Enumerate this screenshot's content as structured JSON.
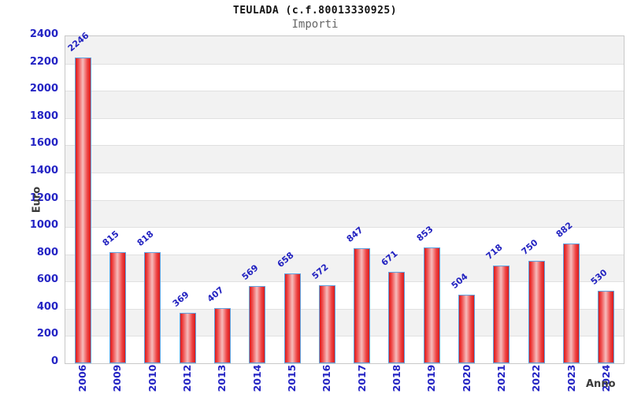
{
  "header": {
    "title": "TEULADA (c.f.80013330925)",
    "subtitle": "Importi"
  },
  "chart_data": {
    "type": "bar",
    "title": "TEULADA (c.f.80013330925)",
    "subtitle": "Importi",
    "xlabel": "Anno",
    "ylabel": "Euro",
    "categories": [
      "2006",
      "2009",
      "2010",
      "2012",
      "2013",
      "2014",
      "2015",
      "2016",
      "2017",
      "2018",
      "2019",
      "2020",
      "2021",
      "2022",
      "2023",
      "2024"
    ],
    "values": [
      2246,
      815,
      818,
      369,
      407,
      569,
      658,
      572,
      847,
      671,
      853,
      504,
      718,
      750,
      882,
      530
    ],
    "ylim": [
      0,
      2400
    ],
    "ytick_step": 200,
    "yticks": [
      0,
      200,
      400,
      600,
      800,
      1000,
      1200,
      1400,
      1600,
      1800,
      2000,
      2200,
      2400
    ],
    "grid": true,
    "legend": "none",
    "band_striping": "alternating gray/white every 200, gray at top",
    "colors": {
      "bar_fill_edge": "#d81c1c",
      "bar_fill_mid": "#ee4040",
      "bar_fill_center": "#f6bcbc",
      "bar_border": "#5fa2e0",
      "tick_label_text": "#2424c4",
      "value_label_text": "#2222c0",
      "band_gray": "#f2f2f2",
      "band_white": "#ffffff",
      "gridline": "#e0e0e0",
      "plot_border": "#c8c8c8",
      "title_text": "#111111",
      "subtitle_text": "#666666",
      "axis_title_text": "#3a3a3a"
    }
  }
}
